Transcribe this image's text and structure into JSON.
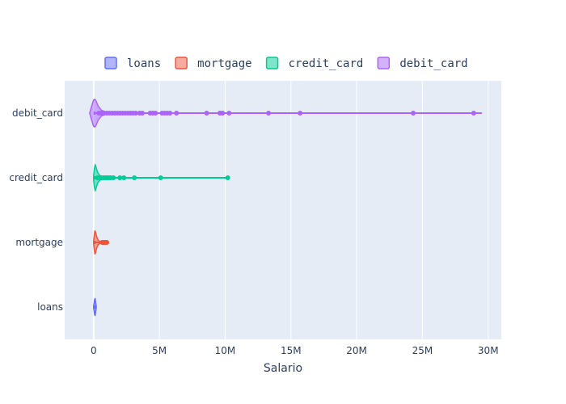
{
  "chart_data": {
    "type": "violin",
    "orientation": "horizontal",
    "title": "",
    "xlabel": "Salario",
    "ylabel": "",
    "xlim": [
      -2200000,
      31000000
    ],
    "x_ticks": [
      0,
      5000000,
      10000000,
      15000000,
      20000000,
      25000000,
      30000000
    ],
    "x_tick_labels": [
      "0",
      "5M",
      "10M",
      "15M",
      "20M",
      "25M",
      "30M"
    ],
    "categories": [
      "loans",
      "mortgage",
      "credit_card",
      "debit_card"
    ],
    "grid": true,
    "legend_position": "top",
    "series": [
      {
        "name": "loans",
        "color": "#636efa",
        "fill": "rgba(99,110,250,0.5)",
        "min": 0,
        "max": 200000,
        "whisker_max": 200000,
        "density": [
          [
            0,
            0.08
          ],
          [
            40000,
            0.25
          ],
          [
            80000,
            0.5
          ],
          [
            110000,
            0.55
          ],
          [
            140000,
            0.4
          ],
          [
            170000,
            0.2
          ],
          [
            200000,
            0.05
          ]
        ],
        "outliers": []
      },
      {
        "name": "mortgage",
        "color": "#EF553B",
        "fill": "rgba(239,85,59,0.5)",
        "min": 0,
        "max": 1000000,
        "whisker_max": 500000,
        "density": [
          [
            0,
            0.1
          ],
          [
            50000,
            0.45
          ],
          [
            100000,
            0.75
          ],
          [
            150000,
            0.65
          ],
          [
            220000,
            0.4
          ],
          [
            320000,
            0.18
          ],
          [
            450000,
            0.07
          ],
          [
            600000,
            0.02
          ],
          [
            1000000,
            0.0
          ]
        ],
        "outliers": [
          650000,
          720000,
          780000,
          830000,
          870000,
          920000,
          960000,
          1000000
        ]
      },
      {
        "name": "credit_card",
        "color": "#00cc96",
        "fill": "rgba(0,204,150,0.5)",
        "min": 0,
        "max": 10200000,
        "whisker_max": 10200000,
        "density": [
          [
            0,
            0.15
          ],
          [
            60000,
            0.6
          ],
          [
            120000,
            0.85
          ],
          [
            180000,
            0.7
          ],
          [
            300000,
            0.35
          ],
          [
            500000,
            0.12
          ],
          [
            900000,
            0.04
          ],
          [
            2000000,
            0.01
          ],
          [
            10200000,
            0.0
          ]
        ],
        "outliers": [
          300000,
          450000,
          600000,
          750000,
          900000,
          1000000,
          1150000,
          1300000,
          1500000,
          2000000,
          2300000,
          3100000,
          5100000,
          10200000
        ]
      },
      {
        "name": "debit_card",
        "color": "#ab63fa",
        "fill": "rgba(171,99,250,0.5)",
        "min": 0,
        "max": 29500000,
        "whisker_max": 29500000,
        "density": [
          [
            -300000,
            0.0
          ],
          [
            -100000,
            0.6
          ],
          [
            0,
            0.85
          ],
          [
            100000,
            0.9
          ],
          [
            200000,
            0.75
          ],
          [
            350000,
            0.45
          ],
          [
            600000,
            0.18
          ],
          [
            1000000,
            0.06
          ],
          [
            2000000,
            0.02
          ],
          [
            29500000,
            0.0
          ]
        ],
        "outliers": [
          400000,
          600000,
          800000,
          1000000,
          1200000,
          1400000,
          1600000,
          1800000,
          2000000,
          2200000,
          2400000,
          2600000,
          2800000,
          3000000,
          3200000,
          3500000,
          3700000,
          4300000,
          4500000,
          4700000,
          5200000,
          5400000,
          5600000,
          5800000,
          6300000,
          8600000,
          9600000,
          9800000,
          10300000,
          13300000,
          15700000,
          24300000,
          28900000
        ]
      }
    ]
  }
}
